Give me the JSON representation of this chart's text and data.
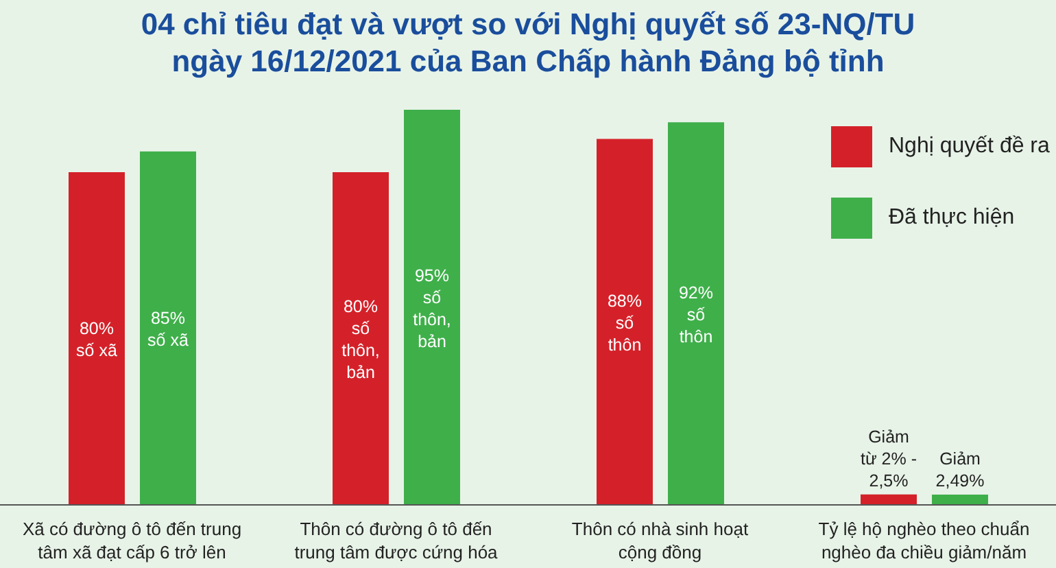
{
  "chart_data": {
    "type": "bar",
    "title": "04 chỉ tiêu đạt và vượt so với Nghị quyết số 23-NQ/TU\nngày 16/12/2021 của Ban Chấp hành Đảng bộ tỉnh",
    "legend": "top right",
    "categories": [
      "Xã có đường ô tô đến trung\ntâm xã đạt cấp 6 trở lên",
      "Thôn có đường ô tô đến\ntrung tâm được cứng hóa",
      "Thôn có nhà sinh hoạt\ncộng đồng",
      "Tỷ lệ hộ nghèo theo chuẩn\nnghèo đa chiều giảm/năm"
    ],
    "series": [
      {
        "name": "Nghị quyết đề ra",
        "color": "#d42129",
        "values": [
          80,
          80,
          88,
          2.5
        ],
        "value_labels": [
          "80%\nsố xã",
          "80%\nsố\nthôn,\nbản",
          "88%\nsố\nthôn",
          "Giảm\ntừ 2% -\n2,5%"
        ]
      },
      {
        "name": "Đã thực hiện",
        "color": "#3faf4a",
        "values": [
          85,
          95,
          92,
          2.49
        ],
        "value_labels": [
          "85%\nsố xã",
          "95%\nsố\nthôn,\nbản",
          "92%\nsố\nthôn",
          "Giảm\n2,49%"
        ]
      }
    ]
  }
}
